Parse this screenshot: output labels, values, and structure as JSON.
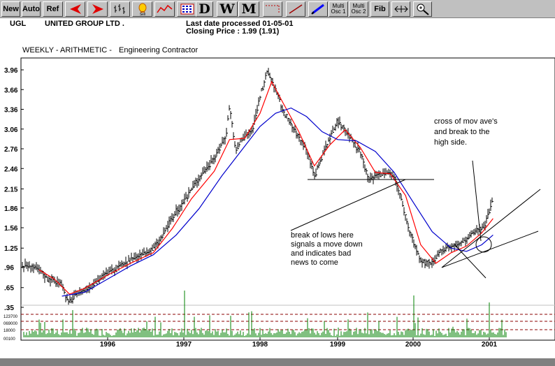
{
  "toolbar": {
    "buttons": [
      {
        "name": "new-button",
        "label": "New",
        "type": "text"
      },
      {
        "name": "auto-button",
        "label": "Auto",
        "type": "text"
      },
      {
        "name": "ref-button",
        "label": "Ref",
        "type": "text"
      },
      {
        "name": "scroll-left-button",
        "icon": "red-left-arrow-icon",
        "type": "icon"
      },
      {
        "name": "scroll-right-button",
        "icon": "red-right-arrow-icon",
        "type": "icon"
      },
      {
        "name": "bar-chart-button",
        "icon": "ohlc-bars-icon",
        "type": "icon"
      },
      {
        "name": "sell-button",
        "icon": "sell-lamp-icon",
        "label": "Sell",
        "type": "icon"
      },
      {
        "name": "line-chart-button",
        "icon": "red-line-chart-icon",
        "type": "icon"
      },
      {
        "name": "grid-button",
        "icon": "grid-icon",
        "type": "icon"
      },
      {
        "name": "daily-button",
        "label": "D",
        "type": "big"
      },
      {
        "name": "weekly-button",
        "label": "W",
        "type": "big"
      },
      {
        "name": "monthly-button",
        "label": "M",
        "type": "big"
      },
      {
        "name": "dashed-line-button",
        "icon": "dashed-line-icon",
        "type": "icon"
      },
      {
        "name": "trendline-button",
        "icon": "trendline-icon",
        "type": "icon"
      },
      {
        "name": "pencil-button",
        "icon": "pencil-icon",
        "type": "icon"
      },
      {
        "name": "multi-osc-1-button",
        "label1": "Multi",
        "label2": "Osc 1",
        "type": "two"
      },
      {
        "name": "multi-osc-2-button",
        "label1": "Multi",
        "label2": "Osc 2",
        "type": "two"
      },
      {
        "name": "fibonacci-button",
        "label": "Fib",
        "type": "text"
      },
      {
        "name": "horizontal-scale-button",
        "icon": "horizontal-arrows-icon",
        "type": "icon"
      },
      {
        "name": "zoom-button",
        "icon": "magnifier-icon",
        "type": "icon"
      }
    ]
  },
  "header": {
    "ticker": "UGL",
    "company": "UNITED GROUP LTD .",
    "last_date": "Last date processed 01-05-01",
    "closing": "Closing Price : 1.99  (1.91)",
    "subtitle": "WEEKLY  -  ARITHMETIC  -",
    "sector": "Engineering Contractor"
  },
  "annotations": {
    "cross_note": [
      "cross of mov ave's",
      "and break to the",
      "high side."
    ],
    "break_note": [
      "break of lows here",
      "signals a move down",
      "and indicates bad",
      "news to come"
    ]
  },
  "colors": {
    "price_bars": "#000000",
    "short_ma": "#ff0000",
    "long_ma": "#0000cc",
    "volume": "#008000",
    "volume_ref_lines": "#8b0000",
    "ma_cross_line": "#0000ff"
  },
  "chart_data": {
    "type": "line",
    "title": "UNITED GROUP LTD .",
    "scale": "arithmetic",
    "period": "weekly",
    "y_ticks": [
      "3.96",
      "3.66",
      "3.36",
      "3.06",
      "2.76",
      "2.46",
      "2.15",
      "1.86",
      "1.56",
      "1.25",
      ".96",
      ".65",
      ".35"
    ],
    "x_ticks": [
      "1996",
      "1997",
      "1998",
      "1999",
      "2000",
      "2001"
    ],
    "volume_ticks": [
      "123700",
      "069000",
      "18000",
      "00100"
    ],
    "ylim": [
      0.35,
      4.05
    ],
    "series": [
      {
        "name": "price",
        "color": "#000000",
        "points": [
          [
            "1995.00",
            0.98
          ],
          [
            "1995.10",
            0.9
          ],
          [
            "1995.20",
            0.8
          ],
          [
            "1995.30",
            0.75
          ],
          [
            "1995.40",
            0.7
          ],
          [
            "1995.48",
            0.42
          ],
          [
            "1995.60",
            0.55
          ],
          [
            "1995.80",
            0.7
          ],
          [
            "1996.00",
            0.87
          ],
          [
            "1996.20",
            1.0
          ],
          [
            "1996.40",
            1.12
          ],
          [
            "1996.60",
            1.25
          ],
          [
            "1996.70",
            1.4
          ],
          [
            "1996.85",
            1.72
          ],
          [
            "1997.00",
            1.95
          ],
          [
            "1997.10",
            2.15
          ],
          [
            "1997.25",
            2.4
          ],
          [
            "1997.40",
            2.62
          ],
          [
            "1997.55",
            2.95
          ],
          [
            "1997.60",
            3.42
          ],
          [
            "1997.68",
            2.7
          ],
          [
            "1997.75",
            2.9
          ],
          [
            "1997.90",
            3.05
          ],
          [
            "1998.00",
            3.56
          ],
          [
            "1998.10",
            3.94
          ],
          [
            "1998.18",
            3.72
          ],
          [
            "1998.30",
            3.32
          ],
          [
            "1998.45",
            3.02
          ],
          [
            "1998.60",
            2.75
          ],
          [
            "1998.70",
            2.35
          ],
          [
            "1998.85",
            2.8
          ],
          [
            "1999.00",
            3.18
          ],
          [
            "1999.10",
            3.05
          ],
          [
            "1999.20",
            2.88
          ],
          [
            "1999.30",
            2.7
          ],
          [
            "1999.40",
            2.3
          ],
          [
            "1999.55",
            2.38
          ],
          [
            "1999.70",
            2.4
          ],
          [
            "1999.80",
            2.18
          ],
          [
            "1999.95",
            1.5
          ],
          [
            "2000.10",
            1.05
          ],
          [
            "2000.25",
            1.0
          ],
          [
            "2000.40",
            1.25
          ],
          [
            "2000.55",
            1.28
          ],
          [
            "2000.70",
            1.38
          ],
          [
            "2000.85",
            1.55
          ],
          [
            "2000.95",
            1.62
          ],
          [
            "2001.05",
            1.99
          ]
        ]
      },
      {
        "name": "short moving average",
        "color": "#ff0000",
        "points": [
          [
            "1995.10",
            0.92
          ],
          [
            "1995.30",
            0.78
          ],
          [
            "1995.50",
            0.55
          ],
          [
            "1995.70",
            0.64
          ],
          [
            "1996.00",
            0.84
          ],
          [
            "1996.30",
            1.02
          ],
          [
            "1996.60",
            1.18
          ],
          [
            "1996.85",
            1.55
          ],
          [
            "1997.10",
            2.0
          ],
          [
            "1997.40",
            2.42
          ],
          [
            "1997.60",
            2.9
          ],
          [
            "1997.80",
            2.92
          ],
          [
            "1998.00",
            3.3
          ],
          [
            "1998.15",
            3.78
          ],
          [
            "1998.30",
            3.45
          ],
          [
            "1998.50",
            3.02
          ],
          [
            "1998.70",
            2.5
          ],
          [
            "1998.90",
            2.82
          ],
          [
            "1999.10",
            3.05
          ],
          [
            "1999.30",
            2.78
          ],
          [
            "1999.50",
            2.4
          ],
          [
            "1999.70",
            2.38
          ],
          [
            "1999.90",
            2.05
          ],
          [
            "2000.10",
            1.3
          ],
          [
            "2000.30",
            1.02
          ],
          [
            "2000.50",
            1.18
          ],
          [
            "2000.70",
            1.28
          ],
          [
            "2000.90",
            1.48
          ],
          [
            "2001.05",
            1.7
          ]
        ]
      },
      {
        "name": "long moving average",
        "color": "#0000cc",
        "points": [
          [
            "1995.40",
            0.52
          ],
          [
            "1995.70",
            0.58
          ],
          [
            "1996.00",
            0.78
          ],
          [
            "1996.30",
            0.98
          ],
          [
            "1996.60",
            1.15
          ],
          [
            "1996.90",
            1.45
          ],
          [
            "1997.20",
            1.85
          ],
          [
            "1997.50",
            2.35
          ],
          [
            "1997.80",
            2.8
          ],
          [
            "1998.00",
            3.1
          ],
          [
            "1998.20",
            3.3
          ],
          [
            "1998.40",
            3.38
          ],
          [
            "1998.60",
            3.25
          ],
          [
            "1998.80",
            3.02
          ],
          [
            "1999.00",
            2.9
          ],
          [
            "1999.25",
            2.88
          ],
          [
            "1999.50",
            2.72
          ],
          [
            "1999.75",
            2.4
          ],
          [
            "2000.00",
            1.95
          ],
          [
            "2000.25",
            1.5
          ],
          [
            "2000.50",
            1.25
          ],
          [
            "2000.70",
            1.2
          ],
          [
            "2000.90",
            1.3
          ],
          [
            "2001.05",
            1.45
          ]
        ]
      }
    ],
    "reference_lines": [
      {
        "type": "support",
        "from": [
          "1998.70",
          2.24
        ],
        "to": [
          "2000.25",
          2.24
        ]
      }
    ]
  }
}
